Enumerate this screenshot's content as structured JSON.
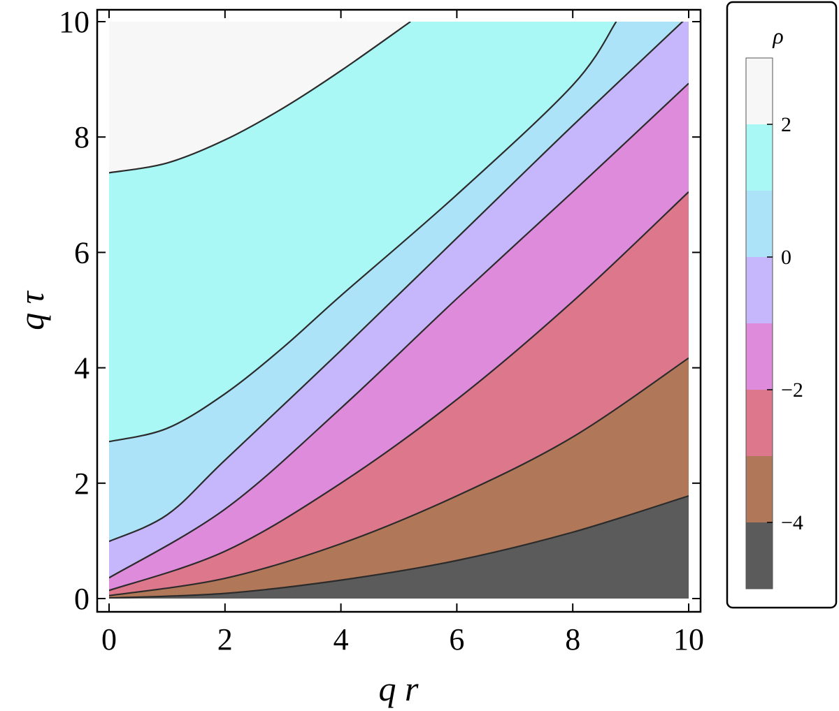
{
  "chart_data": {
    "type": "contour",
    "x_axis": {
      "label": "q r",
      "range": [
        0,
        10
      ],
      "ticks": [
        "0",
        "2",
        "4",
        "6",
        "8",
        "10"
      ]
    },
    "y_axis": {
      "label": "q τ",
      "range": [
        0,
        10
      ],
      "ticks": [
        "0",
        "2",
        "4",
        "6",
        "8",
        "10"
      ]
    },
    "legend": {
      "title": "ρ",
      "placement": "right",
      "range": [
        -5,
        3
      ],
      "ticks": [
        {
          "value": 2,
          "label": "2"
        },
        {
          "value": 0,
          "label": "0"
        },
        {
          "value": -2,
          "label": "−2"
        },
        {
          "value": -4,
          "label": "−4"
        }
      ]
    },
    "bands": [
      {
        "from": -5,
        "to": -4,
        "color": "#5b5b5b"
      },
      {
        "from": -4,
        "to": -3,
        "color": "#b07858"
      },
      {
        "from": -3,
        "to": -2,
        "color": "#dd778c"
      },
      {
        "from": -2,
        "to": -1,
        "color": "#df8bdb"
      },
      {
        "from": -1,
        "to": 0,
        "color": "#c6b6fb"
      },
      {
        "from": 0,
        "to": 1,
        "color": "#ade3f8"
      },
      {
        "from": 1,
        "to": 2,
        "color": "#aaf8f6"
      },
      {
        "from": 2,
        "to": 3,
        "color": "#f7f7f7"
      }
    ],
    "contour_lines": [
      {
        "level": -4,
        "x": [
          0,
          2,
          4,
          6,
          8,
          10
        ],
        "y": [
          0.01,
          0.09,
          0.32,
          0.66,
          1.15,
          1.78
        ]
      },
      {
        "level": -3,
        "x": [
          0,
          2,
          4,
          6,
          8,
          10
        ],
        "y": [
          0.05,
          0.35,
          0.95,
          1.78,
          2.8,
          4.17
        ]
      },
      {
        "level": -2,
        "x": [
          0,
          2,
          4,
          6,
          8,
          10
        ],
        "y": [
          0.14,
          0.82,
          2.0,
          3.45,
          5.15,
          7.05
        ]
      },
      {
        "level": -1,
        "x": [
          0,
          2,
          4,
          6,
          8,
          10
        ],
        "y": [
          0.36,
          1.55,
          3.3,
          5.2,
          7.05,
          8.93
        ]
      },
      {
        "level": 0,
        "x": [
          0,
          1,
          2,
          4,
          6,
          8,
          10
        ],
        "y": [
          0.99,
          1.45,
          2.4,
          4.3,
          6.25,
          8.2,
          10.1
        ]
      },
      {
        "level": 1,
        "x": [
          0,
          1,
          2,
          3,
          4,
          6,
          8,
          8.75
        ],
        "y": [
          2.72,
          2.95,
          3.55,
          4.35,
          5.25,
          7.0,
          8.9,
          10.0
        ]
      },
      {
        "level": 2,
        "x": [
          0,
          1,
          2,
          3,
          4,
          5.2
        ],
        "y": [
          7.38,
          7.55,
          7.95,
          8.5,
          9.15,
          10.0
        ]
      }
    ]
  }
}
